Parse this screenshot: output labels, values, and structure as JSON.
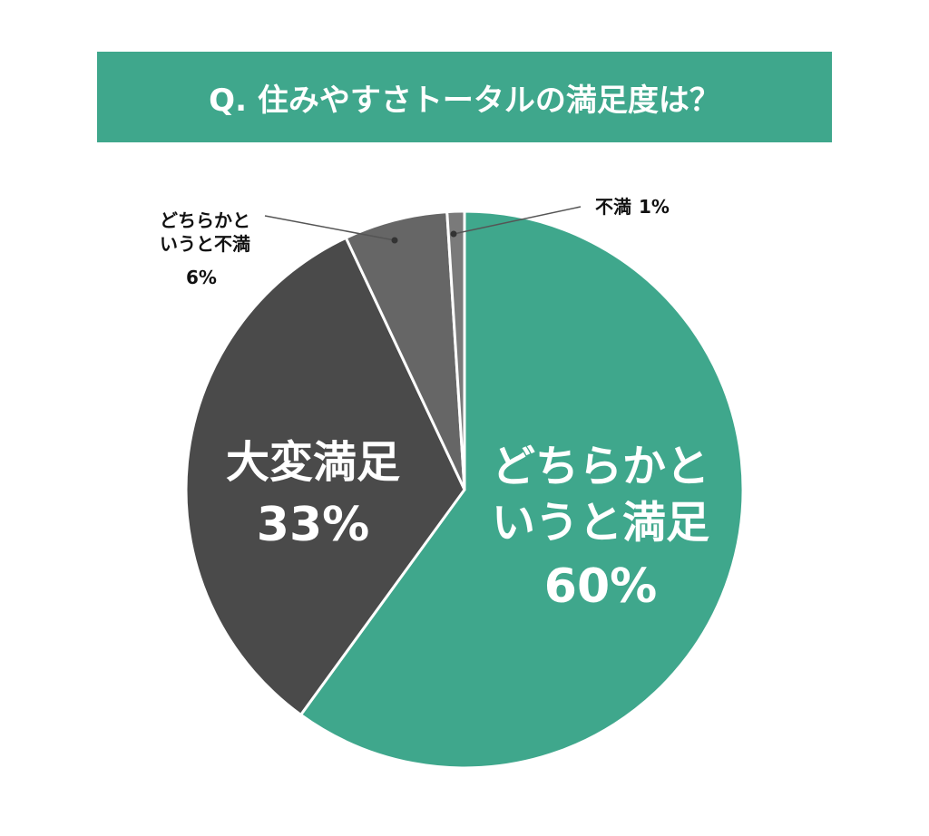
{
  "chart_data": {
    "type": "pie",
    "title": "Q. 住みやすさトータルの満足度は？",
    "categories": [
      "どちらかと\nいうと満足",
      "大変満足",
      "どちらかと\nいうと不満",
      "不満"
    ],
    "values": [
      60,
      33,
      6,
      1
    ],
    "value_labels": [
      "60%",
      "33%",
      "6%",
      "1%"
    ],
    "colors": [
      "#3fa78c",
      "#4a4a4a",
      "#666666",
      "#7a7a7a"
    ]
  }
}
